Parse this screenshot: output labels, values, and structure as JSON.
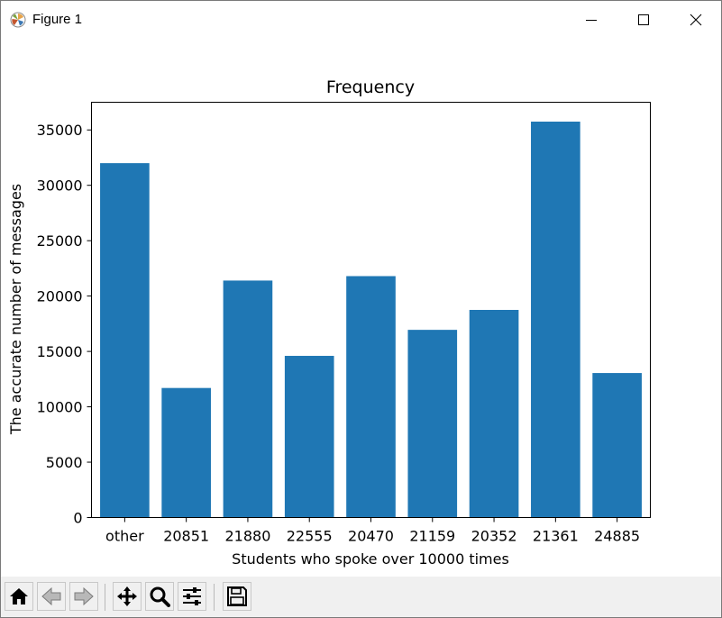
{
  "window": {
    "title": "Figure 1",
    "controls": [
      "minimize",
      "maximize",
      "close"
    ]
  },
  "toolbar": {
    "buttons": [
      {
        "name": "home-icon"
      },
      {
        "name": "back-icon"
      },
      {
        "name": "forward-icon"
      },
      {
        "name": "pan-icon"
      },
      {
        "name": "zoom-icon"
      },
      {
        "name": "configure-subplots-icon"
      },
      {
        "name": "save-icon"
      }
    ]
  },
  "chart_data": {
    "type": "bar",
    "title": "Frequency",
    "xlabel": "Students who spoke over 10000 times",
    "ylabel": "The accurate number of messages",
    "categories": [
      "other",
      "20851",
      "21880",
      "22555",
      "20470",
      "21159",
      "20352",
      "21361",
      "24885"
    ],
    "values": [
      32000,
      11700,
      21400,
      14600,
      21800,
      16950,
      18750,
      35750,
      13050
    ],
    "ylim": [
      0,
      37500
    ],
    "yticks": [
      0,
      5000,
      10000,
      15000,
      20000,
      25000,
      30000,
      35000
    ],
    "ytick_labels": [
      "0",
      "5000",
      "10000",
      "15000",
      "20000",
      "25000",
      "30000",
      "35000"
    ],
    "bar_color": "#1f77b4",
    "grid": false,
    "legend": false
  }
}
